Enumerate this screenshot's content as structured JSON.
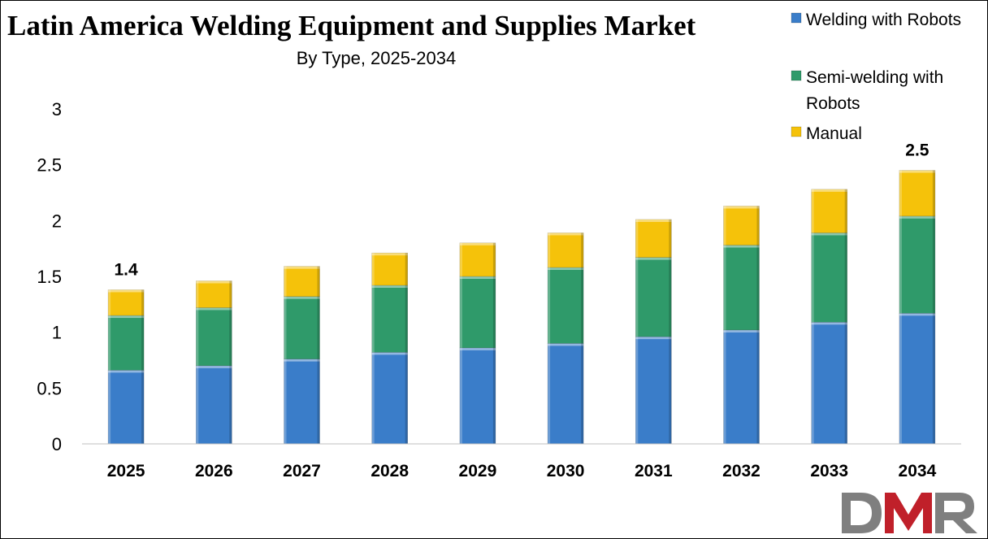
{
  "chart_data": {
    "type": "bar",
    "stacked": true,
    "title": "Latin America Welding Equipment and Supplies Market",
    "subtitle": "By Type, 2025-2034",
    "categories": [
      "2025",
      "2026",
      "2027",
      "2028",
      "2029",
      "2030",
      "2031",
      "2032",
      "2033",
      "2034"
    ],
    "series": [
      {
        "name": "Welding with Robots",
        "color": "#3a7dc9",
        "values": [
          0.66,
          0.7,
          0.76,
          0.82,
          0.86,
          0.9,
          0.96,
          1.02,
          1.09,
          1.17
        ]
      },
      {
        "name": "Semi-welding with Robots",
        "color": "#2f9a6a",
        "values": [
          0.49,
          0.52,
          0.56,
          0.6,
          0.64,
          0.68,
          0.71,
          0.76,
          0.8,
          0.87
        ]
      },
      {
        "name": "Manual",
        "color": "#f5c20a",
        "values": [
          0.23,
          0.24,
          0.27,
          0.29,
          0.3,
          0.31,
          0.34,
          0.35,
          0.39,
          0.41
        ]
      }
    ],
    "data_labels": [
      {
        "category": "2025",
        "text": "1.4"
      },
      {
        "category": "2034",
        "text": "2.5"
      }
    ],
    "ylim": [
      0,
      3
    ],
    "yticks": [
      "0",
      "0.5",
      "1",
      "1.5",
      "2",
      "2.5",
      "3"
    ],
    "xlabel": "",
    "ylabel": "",
    "grid": false,
    "legend_position": "top-right"
  },
  "legend": {
    "items": [
      {
        "lines": [
          "Welding with Robots"
        ],
        "color": "#3a7dc9"
      },
      {
        "lines": [
          "Semi-welding with",
          "Robots"
        ],
        "color": "#2f9a6a"
      },
      {
        "lines": [
          "Manual"
        ],
        "color": "#f5c20a"
      }
    ]
  },
  "logo": {
    "text": "DMR",
    "colors": [
      "#7f7f7f",
      "#c0202a"
    ]
  }
}
